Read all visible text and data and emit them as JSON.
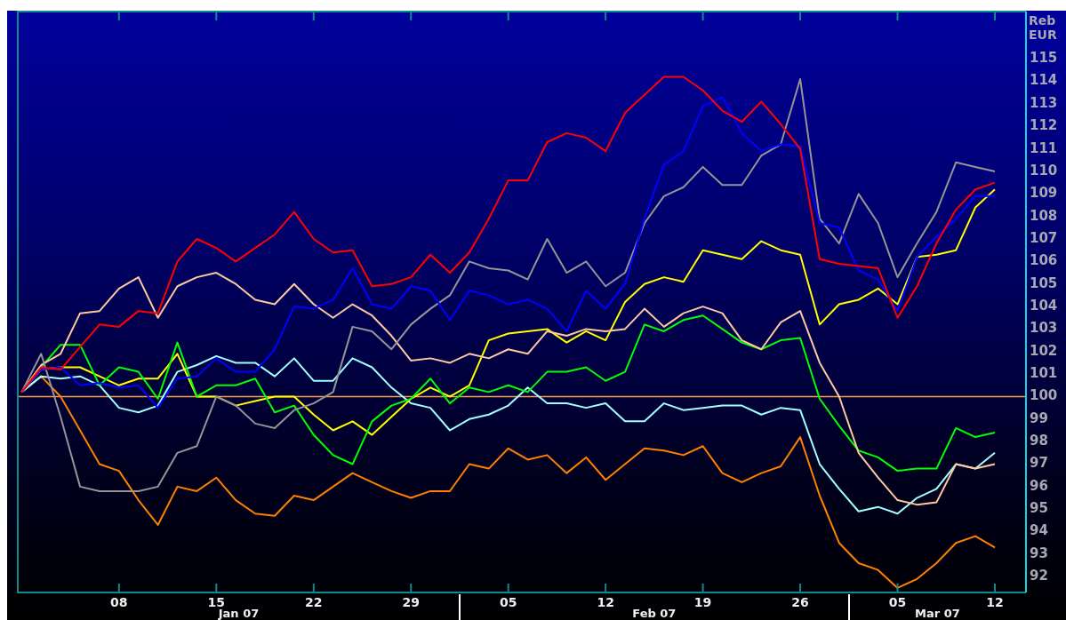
{
  "chart_data": {
    "type": "line",
    "ylabel": "Reb EUR",
    "categories": [
      null,
      null,
      null,
      null,
      null,
      "08",
      null,
      null,
      null,
      null,
      "15",
      null,
      null,
      null,
      null,
      "22",
      null,
      null,
      null,
      null,
      "29",
      null,
      null,
      null,
      null,
      "05",
      null,
      null,
      null,
      null,
      "12",
      null,
      null,
      null,
      null,
      "19",
      null,
      null,
      null,
      null,
      "26",
      null,
      null,
      null,
      null,
      "05",
      null,
      null,
      null,
      null,
      "12"
    ],
    "ylim": [
      91.3,
      117.1
    ],
    "yticks": [
      92,
      93,
      94,
      95,
      96,
      97,
      98,
      99,
      100,
      101,
      102,
      103,
      104,
      105,
      106,
      107,
      108,
      109,
      110,
      111,
      112,
      113,
      114,
      115
    ],
    "ref_lines": [
      {
        "axis": "y",
        "value": 100,
        "color": "#f4a050"
      }
    ],
    "annotations": [
      "Jan 07",
      "Feb 07",
      "Mar 07"
    ],
    "series": [
      {
        "color": "#ff0000",
        "values": [
          100.2,
          101.3,
          101.2,
          102.2,
          103.2,
          103.1,
          103.8,
          103.7,
          106.0,
          107.0,
          106.6,
          106.0,
          106.6,
          107.2,
          108.2,
          107.0,
          106.4,
          106.5,
          104.9,
          105.0,
          105.3,
          106.3,
          105.5,
          106.4,
          107.9,
          109.6,
          109.6,
          111.3,
          111.7,
          111.5,
          110.9,
          112.6,
          113.4,
          114.2,
          114.2,
          113.6,
          112.7,
          112.2,
          113.1,
          112.1,
          111.0,
          106.1,
          105.9,
          105.8,
          105.7,
          103.5,
          104.9,
          106.8,
          108.3,
          109.2,
          109.5
        ]
      },
      {
        "color": "#0000ff",
        "values": [
          100.2,
          101.2,
          101.3,
          100.5,
          100.6,
          100.4,
          100.5,
          99.5,
          100.8,
          100.9,
          101.7,
          101.1,
          101.1,
          102.1,
          104.0,
          103.9,
          104.3,
          105.7,
          104.1,
          103.9,
          104.9,
          104.7,
          103.4,
          104.7,
          104.5,
          104.1,
          104.3,
          103.9,
          102.9,
          104.7,
          103.9,
          105.0,
          107.9,
          110.3,
          110.9,
          112.9,
          113.3,
          111.7,
          110.9,
          111.2,
          111.1,
          107.7,
          107.5,
          105.6,
          105.2,
          103.8,
          106.2,
          107.1,
          107.9,
          108.9,
          108.9
        ]
      },
      {
        "color": "#959595",
        "values": [
          100.2,
          101.9,
          99.1,
          96.0,
          95.8,
          95.8,
          95.8,
          96.0,
          97.5,
          97.8,
          100.0,
          99.6,
          98.8,
          98.6,
          99.4,
          99.7,
          100.2,
          103.1,
          102.9,
          102.1,
          103.2,
          103.9,
          104.5,
          106.0,
          105.7,
          105.6,
          105.2,
          107.0,
          105.5,
          106.0,
          104.9,
          105.5,
          107.7,
          108.9,
          109.3,
          110.2,
          109.4,
          109.4,
          110.7,
          111.2,
          114.1,
          107.9,
          106.8,
          109.0,
          107.7,
          105.3,
          106.8,
          108.2,
          110.4,
          110.2,
          110.0
        ]
      },
      {
        "color": "#ffc8a0",
        "values": [
          100.2,
          101.4,
          101.9,
          103.7,
          103.8,
          104.8,
          105.3,
          103.5,
          104.9,
          105.3,
          105.5,
          105.0,
          104.3,
          104.1,
          105.0,
          104.1,
          103.5,
          104.1,
          103.6,
          102.7,
          101.6,
          101.7,
          101.5,
          101.9,
          101.7,
          102.1,
          101.9,
          102.9,
          102.7,
          103.0,
          102.9,
          103.0,
          103.9,
          103.1,
          103.7,
          104.0,
          103.7,
          102.5,
          102.1,
          103.3,
          103.8,
          101.5,
          100.0,
          97.5,
          96.4,
          95.4,
          95.2,
          95.3,
          97.0,
          96.8,
          97.0
        ]
      },
      {
        "color": "#00ff00",
        "values": [
          100.2,
          101.3,
          102.3,
          102.3,
          100.5,
          101.3,
          101.1,
          99.9,
          102.4,
          100.0,
          100.5,
          100.5,
          100.8,
          99.3,
          99.6,
          98.3,
          97.4,
          97.0,
          98.9,
          99.6,
          99.9,
          100.8,
          99.7,
          100.4,
          100.2,
          100.5,
          100.2,
          101.1,
          101.1,
          101.3,
          100.7,
          101.1,
          103.2,
          102.9,
          103.4,
          103.6,
          103.0,
          102.4,
          102.1,
          102.5,
          102.6,
          99.9,
          98.7,
          97.6,
          97.3,
          96.7,
          96.8,
          96.8,
          98.6,
          98.2,
          98.4
        ]
      },
      {
        "color": "#ffff00",
        "values": [
          100.2,
          101.2,
          101.3,
          101.3,
          100.9,
          100.5,
          100.8,
          100.8,
          101.9,
          100.0,
          100.0,
          99.6,
          99.8,
          100.0,
          100.0,
          99.2,
          98.5,
          98.9,
          98.3,
          99.1,
          99.9,
          100.4,
          100.0,
          100.5,
          102.5,
          102.8,
          102.9,
          103.0,
          102.4,
          102.9,
          102.5,
          104.2,
          105.0,
          105.3,
          105.1,
          106.5,
          106.3,
          106.1,
          106.9,
          106.5,
          106.3,
          103.2,
          104.1,
          104.3,
          104.8,
          104.1,
          106.2,
          106.3,
          106.5,
          108.4,
          109.2
        ]
      },
      {
        "color": "#a0ffff",
        "values": [
          100.2,
          100.9,
          100.8,
          100.9,
          100.5,
          99.5,
          99.3,
          99.6,
          101.1,
          101.4,
          101.8,
          101.5,
          101.5,
          100.9,
          101.7,
          100.7,
          100.7,
          101.7,
          101.3,
          100.4,
          99.7,
          99.5,
          98.5,
          99.0,
          99.2,
          99.6,
          100.4,
          99.7,
          99.7,
          99.5,
          99.7,
          98.9,
          98.9,
          99.7,
          99.4,
          99.5,
          99.6,
          99.6,
          99.2,
          99.5,
          99.4,
          97.0,
          95.9,
          94.9,
          95.1,
          94.8,
          95.5,
          95.9,
          97.0,
          96.8,
          97.5
        ]
      },
      {
        "color": "#ff8000",
        "values": [
          100.2,
          100.9,
          100.0,
          98.5,
          97.0,
          96.7,
          95.4,
          94.3,
          96.0,
          95.8,
          96.4,
          95.4,
          94.8,
          94.7,
          95.6,
          95.4,
          96.0,
          96.6,
          96.2,
          95.8,
          95.5,
          95.8,
          95.8,
          97.0,
          96.8,
          97.7,
          97.2,
          97.4,
          96.6,
          97.3,
          96.3,
          97.0,
          97.7,
          97.6,
          97.4,
          97.8,
          96.6,
          96.2,
          96.6,
          96.9,
          98.2,
          95.6,
          93.5,
          92.6,
          92.3,
          91.5,
          91.9,
          92.6,
          93.5,
          93.8,
          93.3
        ]
      }
    ]
  }
}
